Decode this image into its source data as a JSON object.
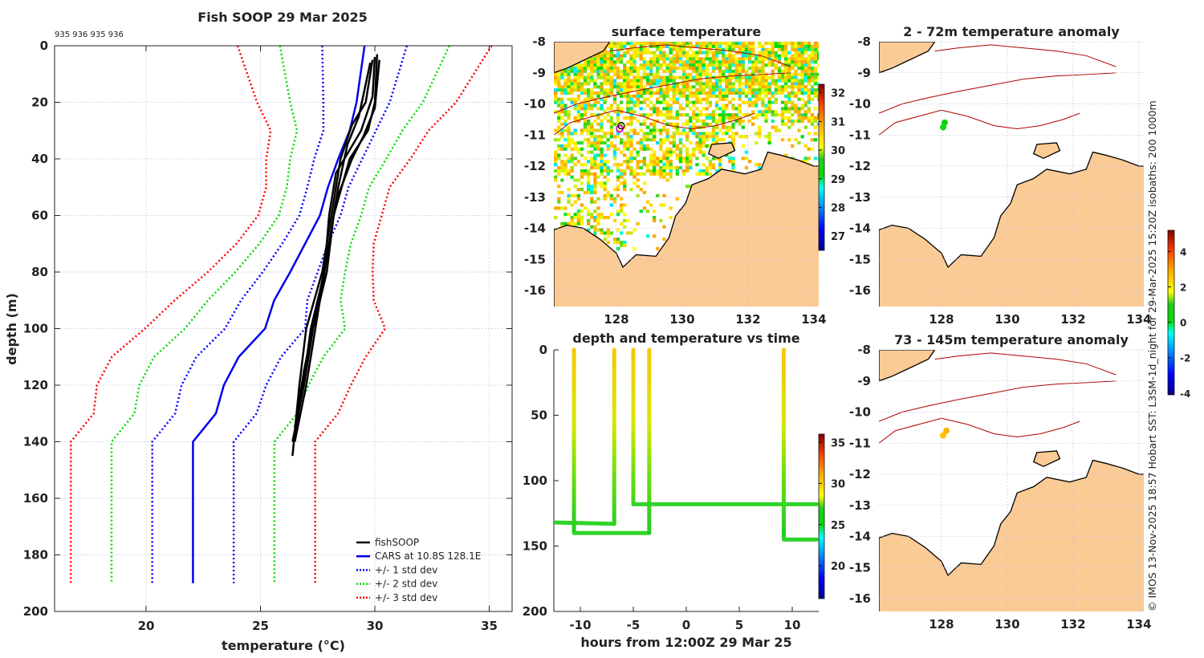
{
  "chart_data": [
    {
      "type": "line",
      "title": "Fish SOOP 29 Mar 2025",
      "subtitle": "935 936 935 936",
      "xlabel": "temperature (°C)",
      "ylabel": "depth (m)",
      "xlim": [
        16,
        36
      ],
      "ylim": [
        0,
        200
      ],
      "xticks": [
        "20",
        "25",
        "30",
        "35"
      ],
      "yticks": [
        "0",
        "20",
        "40",
        "60",
        "80",
        "100",
        "120",
        "140",
        "160",
        "180",
        "200"
      ],
      "grid": true,
      "legend_position": "bottom-right",
      "legend": [
        "fishSOOP",
        "CARS at 10.8S 128.1E",
        "+/- 1 std dev",
        "+/- 2 std dev",
        "+/- 3 std dev"
      ],
      "colors": {
        "fishsoop": "#000000",
        "cars": "#0000ee",
        "std1": "#0000ff",
        "std2": "#00dd00",
        "std3": "#ff0000"
      },
      "cars": {
        "depth": [
          0,
          20,
          30,
          40,
          50,
          60,
          70,
          80,
          90,
          100,
          110,
          120,
          130,
          140,
          190
        ],
        "mean": [
          29.55,
          29.2,
          28.9,
          28.4,
          27.95,
          27.6,
          26.95,
          26.3,
          25.6,
          25.2,
          24.05,
          23.4,
          23.05,
          22.05,
          22.05
        ],
        "std": [
          1.85,
          1.45,
          1.15,
          1.05,
          0.9,
          0.9,
          1.0,
          1.2,
          1.45,
          1.75,
          1.85,
          1.85,
          1.78,
          1.78,
          1.78
        ]
      },
      "fishsoop_profiles": [
        [
          [
            3,
            30.1
          ],
          [
            20,
            30.0
          ],
          [
            30,
            29.7
          ],
          [
            40,
            28.9
          ],
          [
            60,
            28.2
          ],
          [
            80,
            27.9
          ],
          [
            100,
            27.3
          ],
          [
            120,
            26.9
          ],
          [
            140,
            26.4
          ]
        ],
        [
          [
            5,
            29.9
          ],
          [
            20,
            29.6
          ],
          [
            28,
            29.0
          ],
          [
            40,
            28.5
          ],
          [
            60,
            28.1
          ],
          [
            80,
            27.7
          ],
          [
            100,
            27.0
          ],
          [
            120,
            26.7
          ],
          [
            145,
            26.4
          ]
        ],
        [
          [
            4,
            30.0
          ],
          [
            18,
            29.9
          ],
          [
            30,
            29.4
          ],
          [
            45,
            28.3
          ],
          [
            60,
            28.0
          ],
          [
            80,
            27.8
          ],
          [
            100,
            27.2
          ],
          [
            118,
            26.9
          ],
          [
            138,
            26.5
          ]
        ],
        [
          [
            6,
            29.8
          ],
          [
            25,
            29.3
          ],
          [
            35,
            28.8
          ],
          [
            50,
            28.4
          ],
          [
            70,
            28.0
          ],
          [
            90,
            27.6
          ],
          [
            105,
            27.3
          ],
          [
            120,
            27.0
          ],
          [
            140,
            26.5
          ]
        ],
        [
          [
            5,
            30.2
          ],
          [
            22,
            30.0
          ],
          [
            32,
            29.5
          ],
          [
            40,
            29.0
          ],
          [
            55,
            28.3
          ],
          [
            75,
            27.9
          ],
          [
            95,
            27.4
          ],
          [
            115,
            26.9
          ],
          [
            135,
            26.5
          ]
        ]
      ]
    },
    {
      "type": "line",
      "title": "depth and temperature vs time",
      "xlabel": "hours from 12:00Z 29 Mar 25",
      "xlim": [
        -12.5,
        12.5
      ],
      "ylim": [
        0,
        200
      ],
      "xticks": [
        "-10",
        "-5",
        "0",
        "5",
        "10"
      ],
      "yticks": [
        "0",
        "50",
        "100",
        "150",
        "200"
      ],
      "colorbar": {
        "range": [
          16,
          36
        ],
        "ticks": [
          "20",
          "25",
          "30",
          "35"
        ]
      },
      "segments": [
        {
          "hours": [
            -12.3,
            -6.8,
            -6.8
          ],
          "depths": [
            132,
            133,
            0
          ],
          "bottom": 132
        },
        {
          "hours": [
            -10.6,
            -10.6,
            -3.5,
            -3.5
          ],
          "depths": [
            0,
            140,
            140,
            0
          ],
          "bottom": 140
        },
        {
          "hours": [
            -5.0,
            -5.0,
            12.3
          ],
          "depths": [
            0,
            118,
            118
          ],
          "bottom": 117
        },
        {
          "hours": [
            9.2,
            9.2,
            12.3
          ],
          "depths": [
            0,
            145,
            145
          ],
          "bottom": 144
        }
      ]
    },
    {
      "type": "heatmap",
      "title": "surface temperature",
      "xticks": [
        "128",
        "130",
        "132",
        "134"
      ],
      "yticks": [
        "-8",
        "-9",
        "-10",
        "-11",
        "-12",
        "-13",
        "-14",
        "-15",
        "-16"
      ],
      "colorbar": {
        "range": [
          26.5,
          32.3
        ],
        "ticks": [
          "27",
          "28",
          "29",
          "30",
          "31",
          "32"
        ]
      },
      "marker": [
        128.1,
        -10.8
      ]
    },
    {
      "type": "heatmap",
      "title": "2 - 72m temperature anomaly",
      "xticks": [
        "128",
        "130",
        "132",
        "134"
      ],
      "yticks": [
        "-8",
        "-9",
        "-10",
        "-11",
        "-12",
        "-13",
        "-14",
        "-15",
        "-16"
      ],
      "points": [
        [
          128.1,
          -10.6,
          0.5
        ],
        [
          128.05,
          -10.75,
          0.3
        ]
      ]
    },
    {
      "type": "heatmap",
      "title": "73 - 145m temperature anomaly",
      "xticks": [
        "128",
        "130",
        "132",
        "134"
      ],
      "yticks": [
        "-8",
        "-9",
        "-10",
        "-11",
        "-12",
        "-13",
        "-14",
        "-15",
        "-16"
      ],
      "points": [
        [
          128.15,
          -10.6,
          2.8
        ],
        [
          128.05,
          -10.75,
          2.6
        ]
      ],
      "colorbar": {
        "range": [
          -4.1,
          5.2
        ],
        "ticks": [
          "4",
          "2",
          "0",
          "-2",
          "-4"
        ]
      }
    }
  ],
  "map_geo": {
    "land": [
      [
        126.1,
        -14.05
      ],
      [
        126.5,
        -13.9
      ],
      [
        127.0,
        -14.0
      ],
      [
        127.5,
        -14.35
      ],
      [
        128.0,
        -14.8
      ],
      [
        128.2,
        -15.25
      ],
      [
        128.6,
        -14.85
      ],
      [
        129.2,
        -14.9
      ],
      [
        129.6,
        -14.3
      ],
      [
        129.8,
        -13.6
      ],
      [
        130.1,
        -13.2
      ],
      [
        130.3,
        -12.6
      ],
      [
        130.8,
        -12.4
      ],
      [
        131.2,
        -12.1
      ],
      [
        131.9,
        -12.25
      ],
      [
        132.4,
        -12.1
      ],
      [
        132.6,
        -11.55
      ],
      [
        133.0,
        -11.65
      ],
      [
        133.5,
        -11.8
      ],
      [
        134.0,
        -12.0
      ],
      [
        134.5,
        -12.0
      ],
      [
        134.9,
        -11.9
      ],
      [
        134.9,
        -16.6
      ],
      [
        126.1,
        -16.6
      ]
    ],
    "islands": [
      [
        [
          126.1,
          -8.0
        ],
        [
          127.8,
          -8.0
        ],
        [
          127.6,
          -8.3
        ],
        [
          127.0,
          -8.6
        ],
        [
          126.5,
          -8.85
        ],
        [
          126.1,
          -9.0
        ]
      ],
      [
        [
          130.9,
          -11.3
        ],
        [
          131.5,
          -11.25
        ],
        [
          131.6,
          -11.5
        ],
        [
          131.1,
          -11.75
        ],
        [
          130.8,
          -11.6
        ]
      ]
    ],
    "isobaths": [
      [
        [
          126.1,
          -10.3
        ],
        [
          126.8,
          -10.0
        ],
        [
          127.6,
          -9.8
        ],
        [
          128.5,
          -9.6
        ],
        [
          129.5,
          -9.4
        ],
        [
          130.5,
          -9.2
        ],
        [
          131.5,
          -9.1
        ],
        [
          132.5,
          -9.05
        ],
        [
          133.3,
          -9.0
        ]
      ],
      [
        [
          126.1,
          -11.0
        ],
        [
          126.6,
          -10.6
        ],
        [
          127.3,
          -10.4
        ],
        [
          128.0,
          -10.2
        ],
        [
          128.8,
          -10.4
        ],
        [
          129.6,
          -10.7
        ],
        [
          130.3,
          -10.8
        ],
        [
          131.0,
          -10.7
        ],
        [
          131.7,
          -10.5
        ],
        [
          132.2,
          -10.3
        ]
      ],
      [
        [
          127.8,
          -8.3
        ],
        [
          128.5,
          -8.2
        ],
        [
          129.5,
          -8.1
        ],
        [
          130.5,
          -8.2
        ],
        [
          131.5,
          -8.3
        ],
        [
          132.4,
          -8.45
        ],
        [
          133.3,
          -8.8
        ]
      ]
    ]
  },
  "footer_note": "© IMOS 13-Nov-2025 18:57 Hobart SST: L3SM-1d_night for 29-Mar-2025 15:20Z isobaths: 200  1000m"
}
